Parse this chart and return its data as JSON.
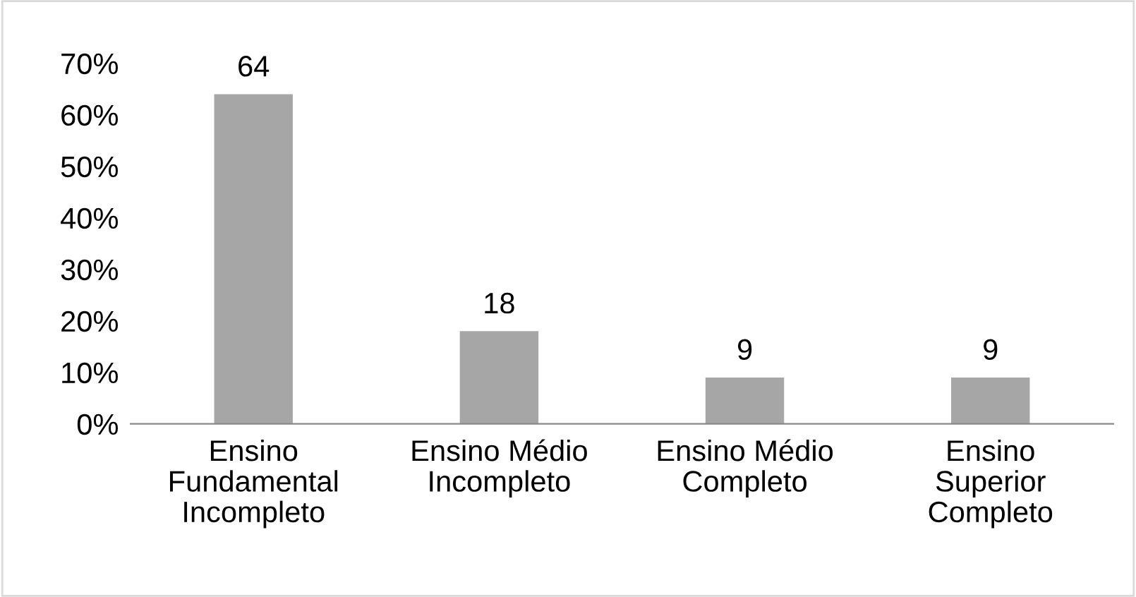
{
  "chart_data": {
    "type": "bar",
    "categories": [
      "Ensino\nFundamental\nIncompleto",
      "Ensino Médio\nIncompleto",
      "Ensino Médio\nCompleto",
      "Ensino\nSuperior\nCompleto"
    ],
    "values": [
      64,
      18,
      9,
      9
    ],
    "color": "#a6a6a6",
    "ylim": [
      0,
      70
    ],
    "yticks": [
      {
        "value": 0,
        "label": "0%"
      },
      {
        "value": 10,
        "label": "10%"
      },
      {
        "value": 20,
        "label": "20%"
      },
      {
        "value": 30,
        "label": "30%"
      },
      {
        "value": 40,
        "label": "40%"
      },
      {
        "value": 50,
        "label": "50%"
      },
      {
        "value": 60,
        "label": "60%"
      },
      {
        "value": 70,
        "label": "70%"
      }
    ],
    "data_labels": true,
    "grid": false,
    "legend": false
  }
}
